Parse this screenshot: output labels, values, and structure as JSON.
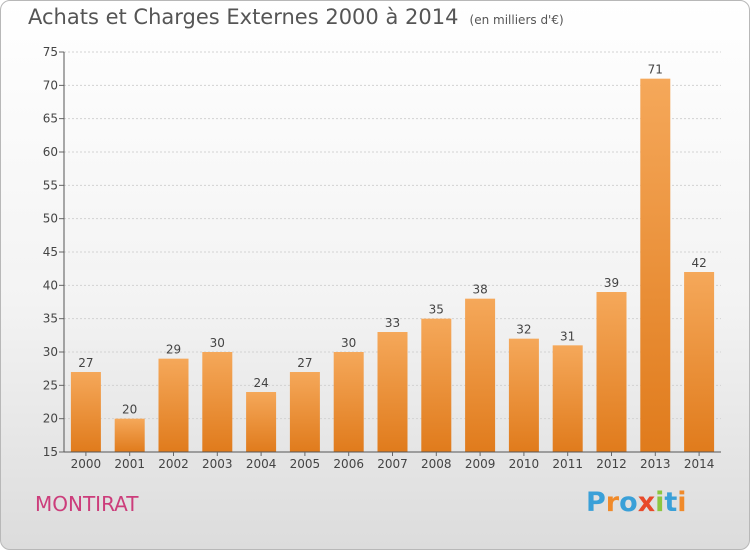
{
  "chart_data": {
    "type": "bar",
    "title": "Achats et Charges Externes 2000 à 2014",
    "subtitle": "(en milliers d'€)",
    "categories": [
      "2000",
      "2001",
      "2002",
      "2003",
      "2004",
      "2005",
      "2006",
      "2007",
      "2008",
      "2009",
      "2010",
      "2011",
      "2012",
      "2013",
      "2014"
    ],
    "values": [
      27,
      20,
      29,
      30,
      24,
      27,
      30,
      33,
      35,
      38,
      32,
      31,
      39,
      71,
      42
    ],
    "ylim": [
      15,
      75
    ],
    "yticks": [
      15,
      20,
      25,
      30,
      35,
      40,
      45,
      50,
      55,
      60,
      65,
      70,
      75
    ],
    "grid": true,
    "bar_color": "#f0953a",
    "xlabel": "",
    "ylabel": ""
  },
  "place_name": "MONTIRAT",
  "logo": {
    "text": "Proxiti",
    "letters": [
      {
        "ch": "P",
        "color": "#3aa0d8"
      },
      {
        "ch": "r",
        "color": "#f08a2a"
      },
      {
        "ch": "o",
        "color": "#3aa0d8"
      },
      {
        "ch": "x",
        "color": "#e84a2a"
      },
      {
        "ch": "i",
        "color": "#8cc63f"
      },
      {
        "ch": "t",
        "color": "#3aa0d8"
      },
      {
        "ch": "i",
        "color": "#f08a2a"
      }
    ]
  }
}
